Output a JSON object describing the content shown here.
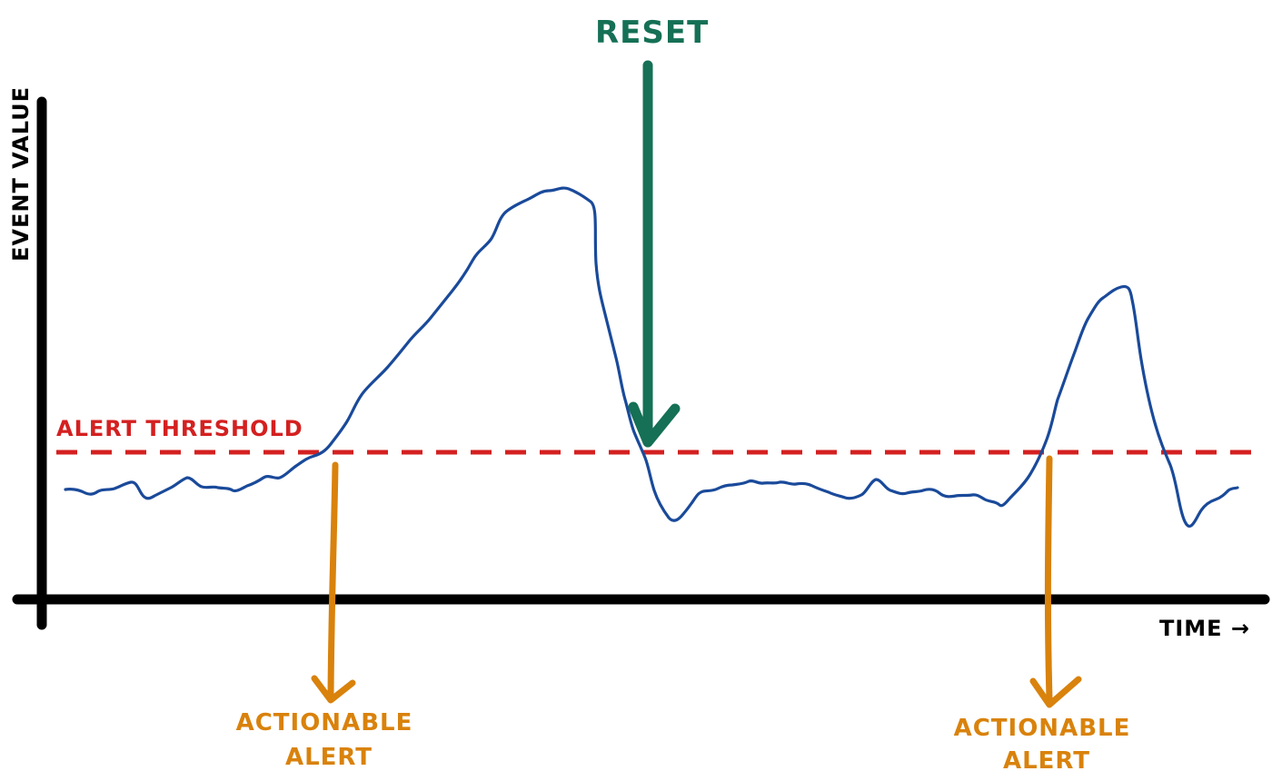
{
  "axes": {
    "y_label": "EVENT VALUE",
    "x_label": "TIME →"
  },
  "threshold": {
    "label": "ALERT THRESHOLD"
  },
  "annotations": {
    "reset_label": "RESET",
    "alert_left": [
      "ACTIONABLE",
      "ALERT"
    ],
    "alert_right": [
      "ACTIONABLE",
      "ALERT"
    ]
  },
  "colors": {
    "axis": "#000000",
    "series": "#1a4a9a",
    "threshold": "#d42020",
    "reset": "#157055",
    "alert": "#d9820c"
  }
}
